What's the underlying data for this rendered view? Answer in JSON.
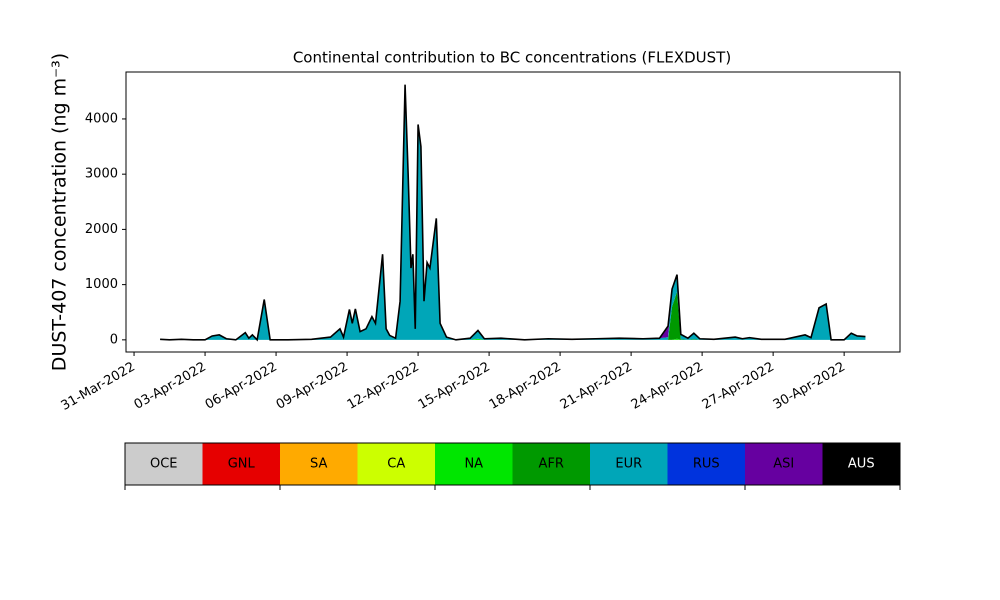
{
  "chart_data": {
    "type": "stacked_area",
    "title": "Continental contribution to BC concentrations (FLEXDUST)",
    "y_label": "DUST-407 concentration (ng m⁻³)",
    "xlim": [
      -0.34,
      32.36
    ],
    "ylim": [
      -220,
      4850
    ],
    "xticks": [
      {
        "value": 0,
        "label": "31-Mar-2022"
      },
      {
        "value": 3,
        "label": "03-Apr-2022"
      },
      {
        "value": 6,
        "label": "06-Apr-2022"
      },
      {
        "value": 9,
        "label": "09-Apr-2022"
      },
      {
        "value": 12,
        "label": "12-Apr-2022"
      },
      {
        "value": 15,
        "label": "15-Apr-2022"
      },
      {
        "value": 18,
        "label": "18-Apr-2022"
      },
      {
        "value": 21,
        "label": "21-Apr-2022"
      },
      {
        "value": 24,
        "label": "24-Apr-2022"
      },
      {
        "value": 27,
        "label": "27-Apr-2022"
      },
      {
        "value": 30,
        "label": "30-Apr-2022"
      }
    ],
    "yticks": [
      0,
      1000,
      2000,
      3000,
      4000
    ],
    "x": [
      1.1,
      1.5,
      2.0,
      2.5,
      3.0,
      3.3,
      3.6,
      3.9,
      4.3,
      4.7,
      4.85,
      5.0,
      5.2,
      5.5,
      5.75,
      6.5,
      7.5,
      8.3,
      8.7,
      8.85,
      9.1,
      9.22,
      9.35,
      9.55,
      9.8,
      10.05,
      10.2,
      10.5,
      10.65,
      10.8,
      11.05,
      11.24,
      11.45,
      11.58,
      11.7,
      11.78,
      11.88,
      12.0,
      12.12,
      12.25,
      12.38,
      12.5,
      12.77,
      12.93,
      13.2,
      13.6,
      14.2,
      14.53,
      14.8,
      15.5,
      16.5,
      17.5,
      18.5,
      19.5,
      20.5,
      21.5,
      22.2,
      22.56,
      22.73,
      22.94,
      23.1,
      23.4,
      23.65,
      23.9,
      24.5,
      25.4,
      25.7,
      26.0,
      26.5,
      27.5,
      28.35,
      28.6,
      28.94,
      29.24,
      29.45,
      30.0,
      30.3,
      30.55,
      30.9
    ],
    "series": [
      {
        "name": "OCE",
        "color": "#cccccc",
        "values": [
          0,
          0,
          0,
          0,
          0,
          0,
          0,
          0,
          0,
          0,
          0,
          0,
          0,
          0,
          0,
          0,
          0,
          0,
          0,
          0,
          0,
          0,
          0,
          0,
          0,
          0,
          0,
          0,
          0,
          0,
          0,
          0,
          0,
          0,
          0,
          0,
          0,
          0,
          0,
          0,
          0,
          0,
          0,
          0,
          0,
          0,
          0,
          0,
          0,
          0,
          0,
          0,
          0,
          0,
          0,
          0,
          0,
          0,
          0,
          0,
          0,
          0,
          0,
          0,
          0,
          0,
          0,
          0,
          0,
          0,
          0,
          0,
          0,
          0,
          0,
          0,
          0,
          0,
          0
        ]
      },
      {
        "name": "GNL",
        "color": "#e60000",
        "values": [
          0,
          0,
          0,
          0,
          0,
          0,
          0,
          0,
          0,
          0,
          0,
          0,
          0,
          0,
          0,
          0,
          0,
          0,
          0,
          0,
          0,
          0,
          0,
          0,
          0,
          0,
          0,
          0,
          0,
          0,
          0,
          0,
          0,
          0,
          0,
          0,
          0,
          0,
          0,
          0,
          0,
          0,
          0,
          0,
          0,
          0,
          0,
          0,
          0,
          0,
          0,
          0,
          0,
          0,
          0,
          0,
          0,
          0,
          0,
          0,
          0,
          0,
          0,
          0,
          0,
          0,
          0,
          0,
          0,
          0,
          0,
          0,
          0,
          0,
          0,
          0,
          0,
          0,
          0
        ]
      },
      {
        "name": "SA",
        "color": "#ffaa00",
        "values": [
          0,
          0,
          0,
          0,
          0,
          0,
          0,
          0,
          0,
          0,
          0,
          0,
          0,
          0,
          0,
          0,
          0,
          0,
          0,
          0,
          0,
          0,
          0,
          0,
          0,
          0,
          0,
          0,
          0,
          0,
          0,
          0,
          0,
          0,
          0,
          0,
          0,
          0,
          0,
          0,
          0,
          0,
          0,
          0,
          0,
          0,
          0,
          0,
          0,
          0,
          0,
          0,
          0,
          0,
          0,
          0,
          0,
          0,
          0,
          0,
          0,
          0,
          0,
          0,
          0,
          0,
          0,
          0,
          0,
          0,
          0,
          0,
          0,
          0,
          0,
          0,
          0,
          0,
          0
        ]
      },
      {
        "name": "CA",
        "color": "#ccff00",
        "values": [
          0,
          0,
          0,
          0,
          0,
          0,
          0,
          0,
          0,
          0,
          0,
          0,
          0,
          0,
          0,
          0,
          0,
          0,
          0,
          0,
          0,
          0,
          0,
          0,
          0,
          0,
          0,
          0,
          0,
          0,
          0,
          0,
          0,
          0,
          0,
          0,
          0,
          0,
          0,
          0,
          0,
          0,
          0,
          0,
          0,
          0,
          0,
          0,
          0,
          0,
          0,
          0,
          0,
          0,
          0,
          0,
          0,
          0,
          0,
          0,
          0,
          0,
          0,
          0,
          0,
          0,
          0,
          0,
          0,
          0,
          0,
          0,
          0,
          0,
          0,
          0,
          0,
          0,
          0
        ]
      },
      {
        "name": "NA",
        "color": "#00e600",
        "values": [
          0,
          0,
          0,
          0,
          0,
          0,
          0,
          0,
          0,
          0,
          0,
          0,
          0,
          0,
          0,
          0,
          0,
          0,
          0,
          0,
          0,
          0,
          0,
          0,
          0,
          0,
          0,
          0,
          0,
          0,
          0,
          0,
          0,
          0,
          0,
          0,
          0,
          0,
          0,
          0,
          0,
          0,
          0,
          0,
          0,
          0,
          0,
          20,
          0,
          0,
          0,
          0,
          0,
          0,
          0,
          0,
          0,
          0,
          0,
          20,
          0,
          0,
          0,
          0,
          0,
          0,
          0,
          0,
          0,
          0,
          0,
          0,
          0,
          0,
          0,
          0,
          0,
          0,
          0
        ]
      },
      {
        "name": "AFR",
        "color": "#009900",
        "values": [
          0,
          0,
          0,
          0,
          0,
          0,
          0,
          0,
          0,
          0,
          0,
          0,
          0,
          0,
          0,
          0,
          0,
          0,
          0,
          0,
          0,
          0,
          0,
          0,
          0,
          0,
          0,
          0,
          0,
          0,
          0,
          0,
          0,
          0,
          0,
          0,
          0,
          0,
          0,
          0,
          0,
          0,
          0,
          0,
          0,
          0,
          0,
          0,
          0,
          0,
          0,
          0,
          0,
          0,
          0,
          0,
          0,
          0,
          600,
          850,
          10,
          0,
          10,
          0,
          0,
          0,
          0,
          0,
          0,
          0,
          0,
          0,
          0,
          0,
          0,
          0,
          0,
          0,
          0
        ]
      },
      {
        "name": "EUR",
        "color": "#00a6b8",
        "values": [
          10,
          0,
          10,
          0,
          0,
          70,
          90,
          20,
          0,
          130,
          30,
          90,
          0,
          730,
          0,
          0,
          10,
          50,
          200,
          50,
          550,
          300,
          560,
          150,
          200,
          420,
          300,
          1550,
          200,
          80,
          30,
          700,
          4620,
          3000,
          1300,
          1550,
          200,
          3900,
          3500,
          700,
          1400,
          1300,
          2200,
          300,
          50,
          0,
          30,
          150,
          20,
          30,
          0,
          20,
          10,
          20,
          30,
          20,
          30,
          50,
          300,
          310,
          90,
          30,
          110,
          20,
          10,
          50,
          20,
          40,
          10,
          10,
          90,
          40,
          580,
          650,
          0,
          0,
          120,
          70,
          60
        ]
      },
      {
        "name": "RUS",
        "color": "#0033dd",
        "values": [
          0,
          0,
          0,
          0,
          0,
          0,
          0,
          0,
          0,
          0,
          0,
          0,
          0,
          0,
          0,
          0,
          0,
          0,
          0,
          0,
          0,
          0,
          0,
          0,
          0,
          0,
          0,
          0,
          0,
          0,
          0,
          0,
          0,
          0,
          0,
          0,
          0,
          0,
          0,
          0,
          0,
          0,
          0,
          0,
          0,
          0,
          0,
          0,
          0,
          0,
          0,
          0,
          0,
          0,
          0,
          0,
          0,
          0,
          0,
          0,
          0,
          0,
          0,
          0,
          0,
          0,
          0,
          0,
          0,
          0,
          0,
          0,
          0,
          0,
          0,
          0,
          0,
          0,
          0
        ]
      },
      {
        "name": "ASI",
        "color": "#6600a0",
        "values": [
          0,
          0,
          0,
          0,
          0,
          0,
          0,
          0,
          0,
          0,
          0,
          0,
          0,
          0,
          0,
          0,
          0,
          0,
          0,
          0,
          0,
          0,
          0,
          0,
          0,
          0,
          0,
          0,
          0,
          0,
          0,
          0,
          0,
          0,
          0,
          0,
          0,
          0,
          0,
          0,
          0,
          0,
          0,
          0,
          0,
          0,
          0,
          0,
          0,
          0,
          0,
          0,
          0,
          0,
          0,
          0,
          0,
          200,
          20,
          0,
          0,
          0,
          0,
          0,
          0,
          0,
          0,
          0,
          0,
          0,
          0,
          0,
          0,
          0,
          0,
          0,
          0,
          0,
          0
        ]
      },
      {
        "name": "AUS",
        "color": "#000000",
        "values": [
          0,
          0,
          0,
          0,
          0,
          0,
          0,
          0,
          0,
          0,
          0,
          0,
          0,
          0,
          0,
          0,
          0,
          0,
          0,
          0,
          0,
          0,
          0,
          0,
          0,
          0,
          0,
          0,
          0,
          0,
          0,
          0,
          0,
          0,
          0,
          0,
          0,
          0,
          0,
          0,
          0,
          0,
          0,
          0,
          0,
          0,
          0,
          0,
          0,
          0,
          0,
          0,
          0,
          0,
          0,
          0,
          0,
          0,
          0,
          0,
          0,
          0,
          0,
          0,
          0,
          0,
          0,
          0,
          0,
          0,
          0,
          0,
          0,
          0,
          0,
          0,
          0,
          0,
          0
        ]
      }
    ]
  }
}
